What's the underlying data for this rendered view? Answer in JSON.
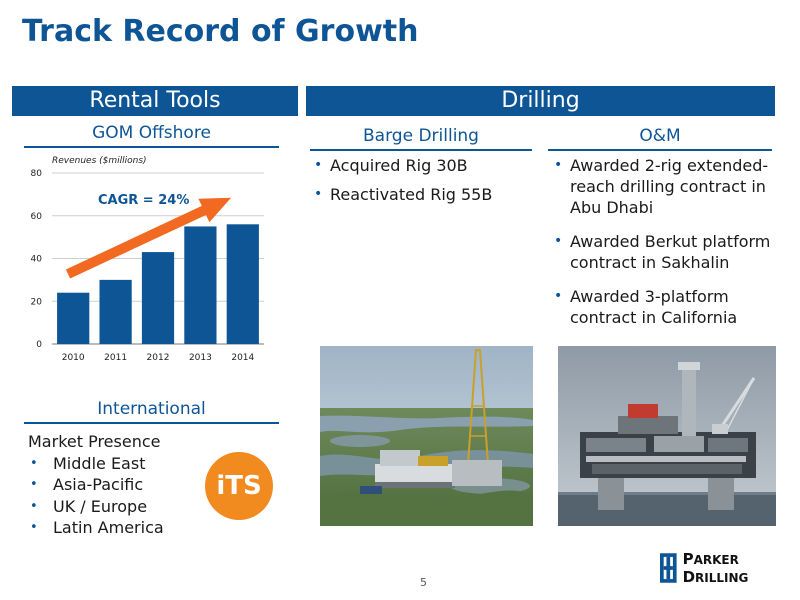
{
  "slide": {
    "title": "Track Record of Growth",
    "page_number": "5"
  },
  "bands": {
    "rental_tools": "Rental Tools",
    "drilling": "Drilling"
  },
  "gom": {
    "heading": "GOM Offshore"
  },
  "chart_data": {
    "type": "bar",
    "title": "Revenues ($millions)",
    "categories": [
      "2010",
      "2011",
      "2012",
      "2013",
      "2014"
    ],
    "values": [
      24,
      30,
      43,
      55,
      56
    ],
    "ylim": [
      0,
      80
    ],
    "yticks": [
      "0",
      "20",
      "40",
      "60",
      "80"
    ],
    "bar_color": "#0e5596",
    "annotation": "CAGR = 24%",
    "arrow_color": "#f26a21",
    "grid": true
  },
  "international": {
    "heading": "International",
    "label": "Market Presence",
    "items": [
      "Middle East",
      "Asia-Pacific",
      "UK / Europe",
      "Latin America"
    ],
    "logo_text": "iTS",
    "logo_color": "#f18a1f"
  },
  "barge": {
    "heading": "Barge Drilling",
    "bullets": [
      "Acquired Rig 30B",
      "Reactivated Rig 55B"
    ]
  },
  "om": {
    "heading": "O&M",
    "bullets": [
      "Awarded 2-rig extended-reach drilling contract in Abu Dhabi",
      "Awarded Berkut platform contract in Sakhalin",
      "Awarded 3-platform contract in California"
    ]
  },
  "logo": {
    "name_big_1": "P",
    "name_small_1": "ARKER",
    "name_big_2": "D",
    "name_small_2": "RILLING"
  },
  "colors": {
    "brand_blue": "#0e5596",
    "accent_orange": "#f26a21"
  }
}
